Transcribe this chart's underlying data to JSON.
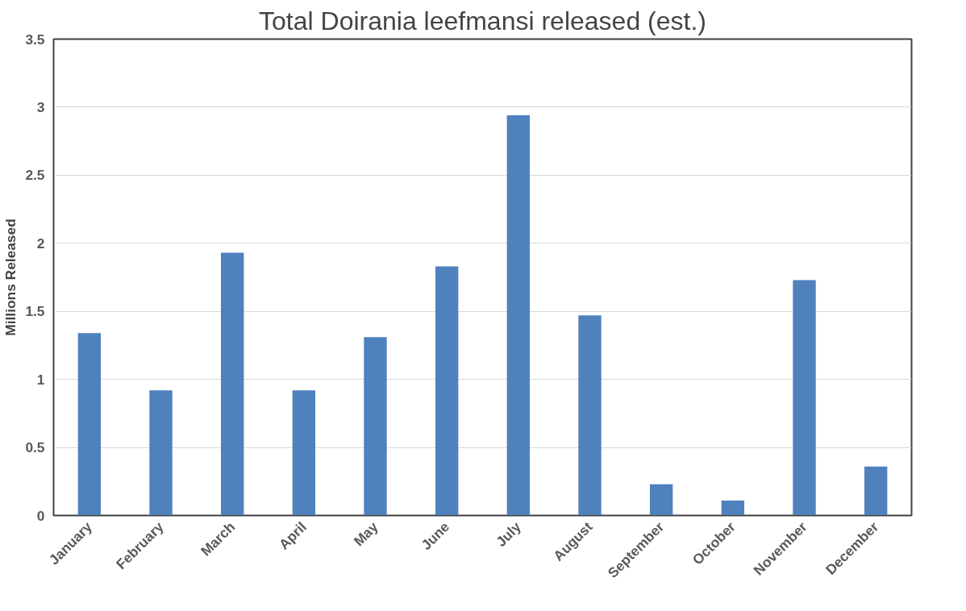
{
  "chart_data": {
    "type": "bar",
    "title": "Total Doirania leefmansi released (est.)",
    "ylabel": "Millions Released",
    "categories": [
      "January",
      "February",
      "March",
      "April",
      "May",
      "June",
      "July",
      "August",
      "September",
      "October",
      "November",
      "December"
    ],
    "values": [
      1.34,
      0.92,
      1.93,
      0.92,
      1.31,
      1.83,
      2.94,
      1.47,
      0.23,
      0.11,
      1.73,
      0.36
    ],
    "color": "#4f81bd",
    "ylim": [
      0,
      3.5
    ],
    "yticks": [
      0,
      0.5,
      1,
      1.5,
      2,
      2.5,
      3,
      3.5
    ],
    "grid": "y"
  }
}
